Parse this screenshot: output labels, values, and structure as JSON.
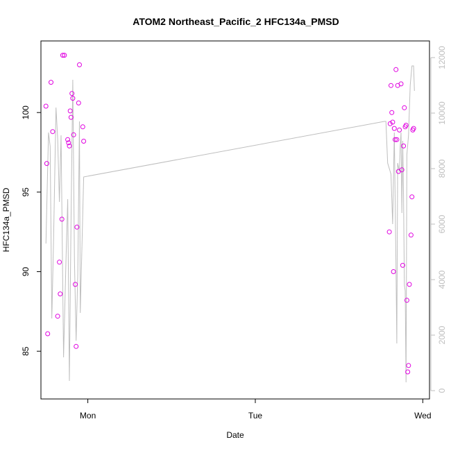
{
  "chart_data": {
    "type": "scatter",
    "title": "ATOM2 Northeast_Pacific_2 HFC134a_PMSD",
    "xlabel": "Date",
    "ylabel": "HFC134a_PMSD",
    "x_ticks": [
      "Mon",
      "Tue",
      "Wed"
    ],
    "y_ticks": [
      85,
      90,
      95,
      100
    ],
    "y2_ticks": [
      0,
      2000,
      4000,
      6000,
      8000,
      10000,
      12000
    ],
    "ylim": [
      82,
      104.5
    ],
    "y2lim": [
      -300,
      12600
    ],
    "xlim": [
      -0.28,
      2.04
    ],
    "grid": false,
    "colors": {
      "points": "#e000e0",
      "line": "#bebebe",
      "axis_right": "#bebebe",
      "frame": "#000000"
    },
    "series": [
      {
        "type": "scatter",
        "x": [
          -0.25,
          -0.245,
          -0.24,
          -0.22,
          -0.21,
          -0.18,
          -0.17,
          -0.165,
          -0.155,
          -0.15,
          -0.14,
          -0.12,
          -0.115,
          -0.11,
          -0.105,
          -0.1,
          -0.095,
          -0.09,
          -0.085,
          -0.075,
          -0.07,
          -0.065,
          -0.055,
          -0.05,
          -0.03,
          -0.025,
          1.8,
          1.805,
          1.81,
          1.815,
          1.82,
          1.825,
          1.83,
          1.835,
          1.84,
          1.845,
          1.85,
          1.855,
          1.86,
          1.87,
          1.875,
          1.88,
          1.885,
          1.89,
          1.895,
          1.9,
          1.905,
          1.91,
          1.915,
          1.92,
          1.93,
          1.935,
          1.94,
          1.945
        ],
        "y": [
          100.4,
          96.8,
          86.1,
          101.9,
          98.8,
          87.2,
          90.6,
          88.6,
          93.3,
          103.6,
          103.6,
          98.3,
          98.1,
          97.9,
          100.1,
          99.7,
          101.2,
          100.9,
          98.6,
          89.2,
          85.3,
          92.8,
          100.6,
          103.0,
          99.1,
          98.2,
          92.5,
          99.3,
          101.7,
          100.0,
          99.4,
          90.0,
          99.0,
          98.3,
          102.7,
          98.3,
          101.7,
          96.3,
          98.9,
          101.8,
          96.4,
          90.4,
          97.9,
          100.3,
          99.1,
          99.2,
          88.2,
          83.7,
          84.1,
          89.2,
          92.3,
          94.7,
          98.9,
          99.0
        ]
      },
      {
        "type": "line",
        "axis": "right",
        "x": [
          -0.25,
          -0.235,
          -0.225,
          -0.215,
          -0.205,
          -0.19,
          -0.18,
          -0.17,
          -0.16,
          -0.145,
          -0.13,
          -0.12,
          -0.11,
          -0.1,
          -0.09,
          -0.08,
          -0.07,
          -0.06,
          -0.05,
          -0.045,
          -0.03,
          -0.025,
          1.77,
          1.78,
          1.79,
          1.8,
          1.81,
          1.82,
          1.83,
          1.84,
          1.845,
          1.85,
          1.86,
          1.865,
          1.87,
          1.875,
          1.88,
          1.885,
          1.89,
          1.895,
          1.9,
          1.905,
          1.915,
          1.925,
          1.935,
          1.945,
          1.95
        ],
        "y": [
          5300,
          9300,
          8800,
          2600,
          5300,
          10200,
          9100,
          6800,
          9200,
          1200,
          4800,
          6900,
          350,
          6200,
          11200,
          4700,
          1800,
          4200,
          9700,
          2800,
          6400,
          7700,
          9700,
          9700,
          8200,
          8000,
          7800,
          6000,
          9300,
          4500,
          1700,
          8200,
          7900,
          8800,
          9300,
          6400,
          9000,
          7000,
          3800,
          3600,
          300,
          8500,
          9200,
          11000,
          11700,
          11700,
          10800
        ]
      }
    ]
  }
}
